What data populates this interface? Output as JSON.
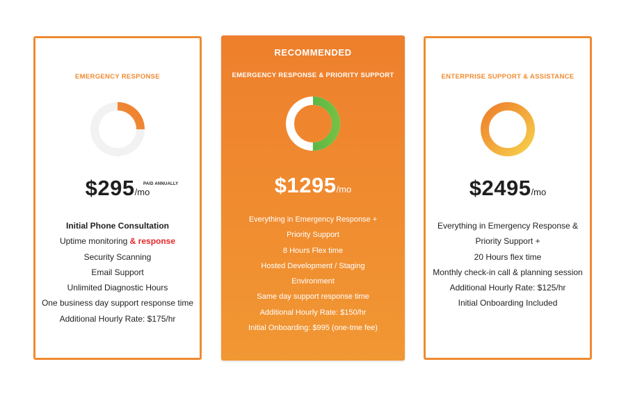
{
  "plans": [
    {
      "name": "EMERGENCY RESPONSE",
      "price": "$295",
      "unit": "/mo",
      "billing_note": "PAID ANNUALLY",
      "ring": {
        "fill_fraction": 0.25,
        "track_color": "#f2f2f2",
        "colors": [
          "#f3a04a",
          "#ee7f2c"
        ]
      },
      "features": [
        "Initial Phone Consultation",
        "Uptime monitoring",
        "& response",
        "Security Scanning",
        "Email Support",
        "Unlimited Diagnostic Hours",
        "One business day support response time",
        "Additional Hourly Rate: $175/hr"
      ]
    },
    {
      "badge": "RECOMMENDED",
      "name": "EMERGENCY RESPONSE & PRIORITY  SUPPORT",
      "price": "$1295",
      "unit": "/mo",
      "ring": {
        "fill_fraction": 0.5,
        "track_color": "#ffffff",
        "colors": [
          "#3fae49",
          "#75c043"
        ]
      },
      "features": [
        "Everything in Emergency Response +",
        "Priority Support",
        "8 Hours Flex time",
        "Hosted Development / Staging",
        "Environment",
        "Same day support response time",
        "Additional Hourly Rate: $150/hr",
        "Initial Onboarding: $995 (one-tme fee)"
      ]
    },
    {
      "name": "ENTERPRISE SUPPORT & ASSISTANCE",
      "price": "$2495",
      "unit": "/mo",
      "ring": {
        "fill_fraction": 1.0,
        "colors": [
          "#f6cf4a",
          "#ee7f2c"
        ]
      },
      "features": [
        "Everything in Emergency Response &",
        "Priority Support +",
        "20 Hours flex time",
        "Monthly check-in call & planning session",
        "Additional Hourly Rate: $125/hr",
        "Initial Onboarding Included"
      ]
    }
  ],
  "colors": {
    "accent_orange": "#ef8a30",
    "highlight_red": "#e5262b"
  }
}
